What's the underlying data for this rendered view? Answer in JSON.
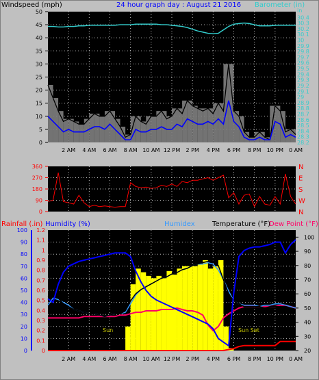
{
  "colors": {
    "background": "#c0c0c0",
    "plot_bg": "#000000",
    "border_dark": "#808080",
    "windspeed": "#000000",
    "gust": "#000000",
    "avg_wind": "#0000ff",
    "barometer": "#33cccc",
    "wind_dir": "#ff0000",
    "rainfall": "#ff0000",
    "humidity": "#0000ff",
    "humidex": "#3399ff",
    "temperature": "#000000",
    "dew_point": "#ff0066",
    "solar": "#ffff00",
    "sun_label": "#cccc00"
  },
  "header": {
    "windspeed_label": "Windspeed (mph)",
    "title": "24 hour graph day : August 21 2016",
    "barometer_label": "Barometer (in)",
    "rainfall_label": "Rainfall (.in)",
    "humidity_label": "Humidity (%)",
    "humidex_label": "Humidex",
    "temperature_label": "Temperature (°F)",
    "dew_point_label": "Dew Point (°F)",
    "sun_rise_label": "Sun",
    "sun_set_label": "Sun Set"
  },
  "chart_data": [
    {
      "type": "line",
      "name": "wind",
      "x_labels": [
        "2 AM",
        "4 AM",
        "6 AM",
        "8 AM",
        "10 AM",
        "12 PM",
        "2 PM",
        "4 PM",
        "6 PM",
        "8 PM",
        "10 PM",
        "0 AM"
      ],
      "ylim": [
        0,
        50
      ],
      "y_ticks": [
        0,
        5,
        10,
        15,
        20,
        25,
        30,
        35,
        40,
        45,
        50
      ],
      "baro_ticks": [
        "28.2",
        "28.3",
        "28.4",
        "28.5",
        "28.6",
        "28.7",
        "28.8",
        "28.9",
        "29",
        "29.1",
        "29.2",
        "29.3",
        "29.4",
        "29.5",
        "29.6",
        "29.7",
        "29.8",
        "29.9",
        "30",
        "30.1",
        "30.2",
        "30.3",
        "30.4"
      ],
      "baro_unit": "in",
      "baro_lim": [
        28.2,
        30.5
      ],
      "hours": [
        0,
        0.5,
        1,
        1.5,
        2,
        2.5,
        3,
        3.5,
        4,
        4.5,
        5,
        5.5,
        6,
        6.5,
        7,
        7.5,
        8,
        8.5,
        9,
        9.5,
        10,
        10.5,
        11,
        11.5,
        12,
        12.5,
        13,
        13.5,
        14,
        14.5,
        15,
        15.5,
        16,
        16.5,
        17,
        17.5,
        18,
        18.5,
        19,
        19.5,
        20,
        20.5,
        21,
        21.5,
        22,
        22.5,
        23,
        23.5,
        24
      ],
      "gust": [
        22,
        17,
        12,
        8,
        9,
        8,
        7,
        7,
        9,
        11,
        10,
        10,
        12,
        9,
        6,
        2,
        3,
        10,
        8,
        7,
        10,
        10,
        12,
        9,
        10,
        13,
        11,
        16,
        14,
        13,
        12,
        13,
        11,
        15,
        12,
        30,
        12,
        10,
        4,
        2,
        2,
        4,
        2,
        1,
        14,
        12,
        4,
        5,
        3
      ],
      "avg": [
        10,
        8,
        6,
        4,
        5,
        4,
        4,
        4,
        5,
        6,
        6,
        5,
        7,
        5,
        3,
        1,
        1,
        5,
        4,
        4,
        5,
        5,
        6,
        5,
        5,
        7,
        6,
        9,
        8,
        7,
        7,
        8,
        7,
        9,
        7,
        16,
        8,
        6,
        2,
        1,
        1,
        2,
        1,
        1,
        8,
        7,
        2,
        3,
        2
      ],
      "barometer": [
        30.24,
        30.24,
        30.23,
        30.23,
        30.24,
        30.24,
        30.25,
        30.25,
        30.26,
        30.26,
        30.26,
        30.26,
        30.26,
        30.26,
        30.27,
        30.27,
        30.27,
        30.28,
        30.28,
        30.28,
        30.28,
        30.28,
        30.27,
        30.27,
        30.26,
        30.25,
        30.24,
        30.22,
        30.19,
        30.16,
        30.14,
        30.12,
        30.11,
        30.12,
        30.18,
        30.24,
        30.28,
        30.29,
        30.3,
        30.29,
        30.27,
        30.25,
        30.25,
        30.25,
        30.26,
        30.26,
        30.26,
        30.26,
        30.26
      ]
    },
    {
      "type": "scatter",
      "name": "wind_direction",
      "y_ticks": [
        0,
        90,
        180,
        270,
        360
      ],
      "ylim": [
        0,
        360
      ],
      "compass": [
        "N",
        "W",
        "S",
        "E",
        "N"
      ],
      "hours": [
        0,
        0.5,
        1,
        1.5,
        2,
        2.5,
        3,
        3.5,
        4,
        4.5,
        5,
        5.5,
        6,
        6.5,
        7,
        7.5,
        8,
        8.5,
        9,
        9.5,
        10,
        10.5,
        11,
        11.5,
        12,
        12.5,
        13,
        13.5,
        14,
        14.5,
        15,
        15.5,
        16,
        16.5,
        17,
        17.5,
        18,
        18.5,
        19,
        19.5,
        20,
        20.5,
        21,
        21.5,
        22,
        22.5,
        23,
        23.5,
        24
      ],
      "direction": [
        80,
        90,
        310,
        80,
        70,
        60,
        130,
        70,
        40,
        50,
        40,
        45,
        40,
        35,
        40,
        40,
        230,
        200,
        190,
        195,
        185,
        190,
        210,
        200,
        220,
        200,
        240,
        230,
        250,
        250,
        260,
        270,
        250,
        270,
        290,
        110,
        150,
        60,
        130,
        140,
        40,
        120,
        60,
        50,
        120,
        60,
        300,
        120,
        60
      ]
    },
    {
      "type": "line",
      "name": "climate",
      "x_labels": [
        "2 AM",
        "4 AM",
        "6 AM",
        "8 AM",
        "10 AM",
        "12 PM",
        "2 PM",
        "4 PM",
        "6 PM",
        "8 PM",
        "10 PM",
        "0 AM"
      ],
      "left_ticks_rain": [
        "0",
        "0.1",
        "0.2",
        "0.3",
        "0.4",
        "0.5",
        "0.6",
        "0.7",
        "0.8",
        "0.9",
        "1",
        "1.1",
        "1.2"
      ],
      "left_ticks_humidity": [
        0,
        10,
        20,
        30,
        40,
        50,
        60,
        70,
        80,
        90,
        100
      ],
      "right_ticks_temp": [
        20,
        30,
        40,
        50,
        60,
        70,
        80,
        90,
        100
      ],
      "temp_lim": [
        20,
        105
      ],
      "hours": [
        0,
        0.5,
        1,
        1.5,
        2,
        2.5,
        3,
        3.5,
        4,
        4.5,
        5,
        5.5,
        6,
        6.5,
        7,
        7.5,
        8,
        8.5,
        9,
        9.5,
        10,
        10.5,
        11,
        11.5,
        12,
        12.5,
        13,
        13.5,
        14,
        14.5,
        15,
        15.5,
        16,
        16.5,
        17,
        17.5,
        18,
        18.5,
        19,
        19.5,
        20,
        20.5,
        21,
        21.5,
        22,
        22.5,
        23,
        23.5,
        24
      ],
      "humidity": [
        43,
        40,
        55,
        65,
        70,
        72,
        74,
        75,
        76,
        77,
        78,
        79,
        80,
        81,
        81,
        81,
        78,
        66,
        57,
        50,
        45,
        42,
        40,
        38,
        36,
        34,
        32,
        30,
        28,
        26,
        24,
        22,
        18,
        10,
        7,
        4,
        48,
        78,
        83,
        85,
        86,
        86,
        87,
        88,
        90,
        90,
        81,
        88,
        92
      ],
      "humidex": [
        52,
        57,
        56,
        54,
        52,
        49,
        48,
        47,
        46,
        46,
        45,
        44,
        45,
        46,
        46,
        47,
        53,
        59,
        63,
        65,
        67,
        69,
        71,
        72,
        74,
        75,
        77,
        78,
        80,
        81,
        81,
        82,
        81,
        77,
        70,
        62,
        55,
        53,
        52,
        52,
        52,
        51,
        52,
        52,
        53,
        53,
        52,
        51,
        50
      ],
      "temperature": [
        58,
        60,
        57,
        53,
        51,
        49,
        48,
        47,
        46,
        46,
        45,
        44,
        45,
        46,
        46,
        48,
        55,
        60,
        63,
        65,
        67,
        69,
        71,
        72,
        74,
        75,
        77,
        78,
        80,
        81,
        82,
        83,
        84,
        80,
        70,
        60,
        55,
        53,
        51,
        51,
        51,
        51,
        50,
        51,
        51,
        51,
        51,
        50,
        49
      ],
      "dew_point": [
        43,
        43,
        43,
        43,
        43,
        43,
        43,
        44,
        44,
        44,
        44,
        44,
        44,
        44,
        45,
        45,
        46,
        47,
        47,
        48,
        48,
        48,
        49,
        49,
        49,
        50,
        49,
        48,
        48,
        47,
        45,
        38,
        34,
        37,
        43,
        46,
        48,
        50,
        51,
        51,
        51,
        51,
        51,
        51,
        51,
        52,
        52,
        51,
        50
      ],
      "rainfall": [
        0,
        0,
        0,
        0,
        0,
        0,
        0,
        0,
        0,
        0,
        0,
        0,
        0,
        0,
        0,
        0,
        0,
        0,
        0,
        0,
        0,
        0,
        0,
        0,
        0,
        0,
        0,
        0,
        0,
        0,
        0,
        0,
        0,
        0,
        0,
        0.01,
        0.02,
        0.04,
        0.05,
        0.05,
        0.05,
        0.05,
        0.05,
        0.05,
        0.05,
        0.09,
        0.09,
        0.09,
        0.09
      ],
      "solar": [
        0,
        0,
        0,
        0,
        0,
        0,
        0,
        0,
        0,
        0,
        0,
        0,
        0,
        0,
        0,
        0,
        0.2,
        0.55,
        0.68,
        0.65,
        0.62,
        0.6,
        0.62,
        0.6,
        0.66,
        0.63,
        0.68,
        0.7,
        0.7,
        0.7,
        0.72,
        0.75,
        0.68,
        0.7,
        0.75,
        0.2,
        0.02,
        0,
        0,
        0,
        0,
        0,
        0,
        0,
        0,
        0,
        0,
        0,
        0
      ]
    }
  ]
}
